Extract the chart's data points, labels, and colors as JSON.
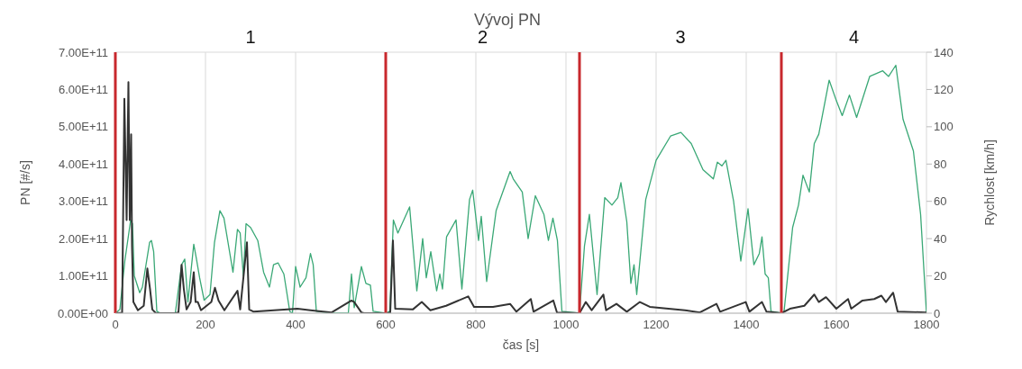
{
  "chart_data": {
    "type": "line",
    "title": "Vývoj PN",
    "xlabel": "čas [s]",
    "ylabel": "PN [#/s]",
    "y2label": "Rychlost [km/h]",
    "xlim": [
      0,
      1800
    ],
    "xticks": [
      0,
      200,
      400,
      600,
      800,
      1000,
      1200,
      1400,
      1600,
      1800
    ],
    "ylim": [
      0,
      700000000000.0
    ],
    "yticks": [
      {
        "value": 0,
        "label": "0.00E+00"
      },
      {
        "value": 100000000000.0,
        "label": "1.00E+11"
      },
      {
        "value": 200000000000.0,
        "label": "2.00E+11"
      },
      {
        "value": 300000000000.0,
        "label": "3.00E+11"
      },
      {
        "value": 400000000000.0,
        "label": "4.00E+11"
      },
      {
        "value": 500000000000.0,
        "label": "5.00E+11"
      },
      {
        "value": 600000000000.0,
        "label": "6.00E+11"
      },
      {
        "value": 700000000000.0,
        "label": "7.00E+11"
      }
    ],
    "y2lim": [
      0,
      140
    ],
    "y2ticks": [
      0,
      20,
      40,
      60,
      80,
      100,
      120,
      140
    ],
    "grid": true,
    "series": [
      {
        "color": "#3aa876",
        "axis": "y2",
        "x": [
          0,
          10,
          21,
          34,
          38,
          42,
          54,
          60,
          76,
          80,
          85,
          92,
          100,
          133,
          147,
          154,
          161,
          168,
          174,
          180,
          187,
          197,
          210,
          220,
          232,
          241,
          261,
          271,
          277,
          284,
          290,
          300,
          316,
          329,
          342,
          351,
          361,
          374,
          387,
          393,
          400,
          410,
          423,
          433,
          439,
          446,
          480,
          517,
          524,
          530,
          546,
          556,
          566,
          572,
          600,
          609,
          617,
          627,
          653,
          669,
          682,
          690,
          700,
          713,
          720,
          726,
          735,
          756,
          769,
          786,
          793,
          806,
          812,
          824,
          845,
          876,
          883,
          903,
          916,
          932,
          951,
          961,
          971,
          981,
          991,
          1030,
          1041,
          1052,
          1069,
          1086,
          1102,
          1115,
          1122,
          1135,
          1144,
          1151,
          1157,
          1177,
          1200,
          1232,
          1255,
          1278,
          1304,
          1327,
          1336,
          1346,
          1355,
          1372,
          1388,
          1404,
          1417,
          1429,
          1435,
          1442,
          1449,
          1455,
          1478,
          1484,
          1503,
          1516,
          1526,
          1540,
          1551,
          1561,
          1584,
          1600,
          1613,
          1629,
          1645,
          1674,
          1703,
          1716,
          1732,
          1748,
          1771,
          1787,
          1800
        ],
        "values": [
          0,
          2,
          28,
          50,
          48,
          20,
          11,
          14,
          38,
          39,
          33,
          1,
          0,
          0,
          26,
          29,
          6,
          23,
          37,
          29,
          19,
          7,
          10,
          38,
          55,
          51,
          22,
          45,
          43,
          20,
          48,
          46,
          39,
          22,
          14,
          26,
          27,
          21,
          1,
          0,
          25,
          14,
          19,
          32,
          26,
          1,
          0,
          0,
          21,
          3,
          25,
          16,
          15,
          1,
          0,
          1,
          50,
          43,
          57,
          12,
          40,
          19,
          33,
          12,
          21,
          13,
          41,
          50,
          13,
          61,
          66,
          39,
          52,
          17,
          55,
          76,
          72,
          65,
          40,
          63,
          53,
          39,
          51,
          39,
          1,
          0,
          36,
          53,
          10,
          62,
          58,
          62,
          70,
          49,
          16,
          26,
          10,
          61,
          82,
          95,
          97,
          91,
          77,
          72,
          81,
          79,
          82,
          60,
          28,
          56,
          26,
          32,
          41,
          21,
          19,
          1,
          0,
          1,
          46,
          58,
          74,
          65,
          91,
          96,
          125,
          114,
          106,
          117,
          105,
          127,
          130,
          127,
          133,
          104,
          87,
          53,
          0
        ]
      },
      {
        "color": "#333333",
        "x": [
          0,
          15,
          20,
          25,
          29,
          32,
          35,
          37,
          40,
          50,
          63,
          71,
          77,
          82,
          90,
          133,
          140,
          147,
          152,
          158,
          167,
          174,
          178,
          183,
          190,
          213,
          221,
          229,
          242,
          271,
          277,
          292,
          297,
          307,
          352,
          404,
          433,
          480,
          524,
          530,
          546,
          552,
          605,
          610,
          616,
          621,
          660,
          680,
          699,
          734,
          783,
          796,
          838,
          876,
          890,
          922,
          928,
          972,
          980,
          1030,
          1044,
          1057,
          1083,
          1089,
          1112,
          1135,
          1164,
          1186,
          1264,
          1297,
          1334,
          1342,
          1399,
          1407,
          1435,
          1445,
          1478,
          1497,
          1529,
          1551,
          1561,
          1577,
          1600,
          1626,
          1633,
          1658,
          1684,
          1700,
          1710,
          1726,
          1736,
          1800
        ],
        "values": [
          0,
          1000000000.0,
          575000000000.0,
          250000000000.0,
          620000000000.0,
          250000000000.0,
          480000000000.0,
          180000000000.0,
          30000000000.0,
          8000000000.0,
          20000000000.0,
          120000000000.0,
          64000000000.0,
          10000000000.0,
          0,
          0,
          2000000000.0,
          130000000000.0,
          64000000000.0,
          10000000000.0,
          30000000000.0,
          110000000000.0,
          30000000000.0,
          30000000000.0,
          8000000000.0,
          30000000000.0,
          68000000000.0,
          34000000000.0,
          8000000000.0,
          60000000000.0,
          10000000000.0,
          190000000000.0,
          10000000000.0,
          4000000000.0,
          8000000000.0,
          12000000000.0,
          8000000000.0,
          2000000000.0,
          34000000000.0,
          30000000000.0,
          2000000000.0,
          0,
          0,
          2000000000.0,
          195000000000.0,
          12000000000.0,
          10000000000.0,
          30000000000.0,
          8000000000.0,
          20000000000.0,
          45000000000.0,
          17000000000.0,
          17000000000.0,
          25000000000.0,
          4000000000.0,
          38000000000.0,
          4000000000.0,
          34000000000.0,
          2000000000.0,
          0,
          30000000000.0,
          8000000000.0,
          50000000000.0,
          8000000000.0,
          25000000000.0,
          4000000000.0,
          30000000000.0,
          17000000000.0,
          8000000000.0,
          2000000000.0,
          25000000000.0,
          4000000000.0,
          30000000000.0,
          4000000000.0,
          30000000000.0,
          4000000000.0,
          0,
          12000000000.0,
          20000000000.0,
          50000000000.0,
          30000000000.0,
          43000000000.0,
          12000000000.0,
          38000000000.0,
          12000000000.0,
          34000000000.0,
          38000000000.0,
          47000000000.0,
          30000000000.0,
          55000000000.0,
          4000000000.0,
          2000000000.0
        ]
      }
    ],
    "ref_lines": [
      {
        "axis": "x",
        "value": 0,
        "color": "#c8282d"
      },
      {
        "axis": "x",
        "value": 600,
        "color": "#c8282d"
      },
      {
        "axis": "x",
        "value": 1030,
        "color": "#c8282d"
      },
      {
        "axis": "x",
        "value": 1478,
        "color": "#c8282d"
      }
    ],
    "annotations": [
      "1",
      "2",
      "3",
      "4"
    ]
  }
}
